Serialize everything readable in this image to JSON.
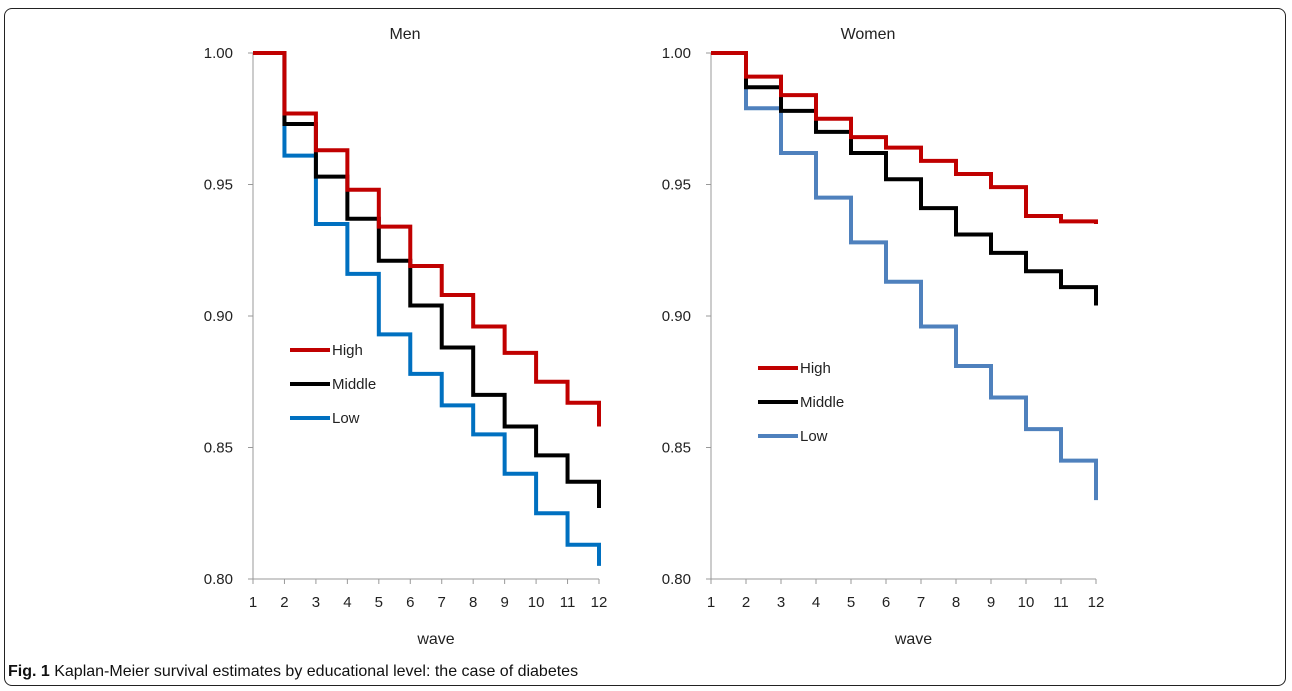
{
  "caption": {
    "label": "Fig. 1",
    "text": "Kaplan-Meier survival estimates by educational level: the case of diabetes"
  },
  "chart_data": [
    {
      "type": "line",
      "step": true,
      "title": "Men",
      "xlabel": "wave",
      "ylabel": "",
      "x": [
        1,
        2,
        3,
        4,
        5,
        6,
        7,
        8,
        9,
        10,
        11,
        12
      ],
      "xlim": [
        1,
        12
      ],
      "ylim": [
        0.8,
        1.0
      ],
      "yticks": [
        "0.80",
        "0.85",
        "0.90",
        "0.95",
        "1.00"
      ],
      "grid": false,
      "legend_placement": "center-left",
      "series": [
        {
          "name": "High",
          "color": "#c00000",
          "values": [
            1.0,
            0.977,
            0.963,
            0.948,
            0.934,
            0.919,
            0.908,
            0.896,
            0.886,
            0.875,
            0.867,
            0.858
          ]
        },
        {
          "name": "Middle",
          "color": "#000000",
          "values": [
            1.0,
            0.973,
            0.953,
            0.937,
            0.921,
            0.904,
            0.888,
            0.87,
            0.858,
            0.847,
            0.837,
            0.827
          ]
        },
        {
          "name": "Low",
          "color": "#0070c0",
          "values": [
            1.0,
            0.961,
            0.935,
            0.916,
            0.893,
            0.878,
            0.866,
            0.855,
            0.84,
            0.825,
            0.813,
            0.805
          ]
        }
      ]
    },
    {
      "type": "line",
      "step": true,
      "title": "Women",
      "xlabel": "wave",
      "ylabel": "",
      "x": [
        1,
        2,
        3,
        4,
        5,
        6,
        7,
        8,
        9,
        10,
        11,
        12
      ],
      "xlim": [
        1,
        12
      ],
      "ylim": [
        0.8,
        1.0
      ],
      "yticks": [
        "0.80",
        "0.85",
        "0.90",
        "0.95",
        "1.00"
      ],
      "grid": false,
      "legend_placement": "center-left",
      "series": [
        {
          "name": "High",
          "color": "#c00000",
          "values": [
            1.0,
            0.991,
            0.984,
            0.975,
            0.968,
            0.964,
            0.959,
            0.954,
            0.949,
            0.938,
            0.936,
            0.935
          ]
        },
        {
          "name": "Middle",
          "color": "#000000",
          "values": [
            1.0,
            0.987,
            0.978,
            0.97,
            0.962,
            0.952,
            0.941,
            0.931,
            0.924,
            0.917,
            0.911,
            0.904
          ]
        },
        {
          "name": "Low",
          "color": "#4f81bd",
          "values": [
            1.0,
            0.979,
            0.962,
            0.945,
            0.928,
            0.913,
            0.896,
            0.881,
            0.869,
            0.857,
            0.845,
            0.83
          ]
        }
      ]
    }
  ]
}
